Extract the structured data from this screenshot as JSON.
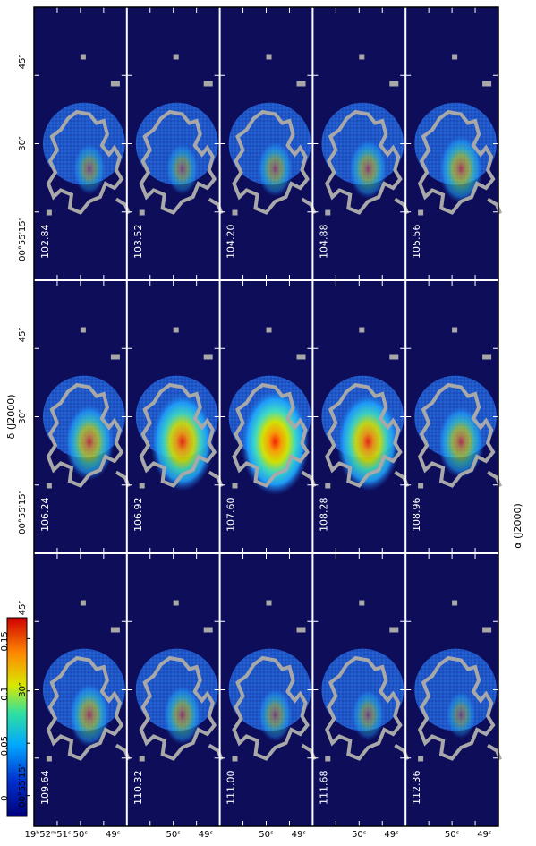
{
  "chart_data": {
    "type": "heatmap",
    "layout": {
      "rows": 3,
      "cols": 5,
      "orientation": "rotated-90-clockwise"
    },
    "panels": [
      {
        "velocity": "102.84"
      },
      {
        "velocity": "103.52"
      },
      {
        "velocity": "104.20"
      },
      {
        "velocity": "104.88"
      },
      {
        "velocity": "105.56"
      },
      {
        "velocity": "106.24"
      },
      {
        "velocity": "106.92"
      },
      {
        "velocity": "107.60"
      },
      {
        "velocity": "108.28"
      },
      {
        "velocity": "108.96"
      },
      {
        "velocity": "109.64"
      },
      {
        "velocity": "110.32"
      },
      {
        "velocity": "111.00"
      },
      {
        "velocity": "111.68"
      },
      {
        "velocity": "112.36"
      }
    ],
    "panel_peak": [
      0.03,
      0.03,
      0.04,
      0.05,
      0.07,
      0.09,
      0.14,
      0.16,
      0.14,
      0.08,
      0.06,
      0.05,
      0.035,
      0.03,
      0.02
    ],
    "xlabel": "α (J2000)",
    "ylabel": "δ (J2000)",
    "xticks": [
      "19ʰ52ᵐ51ˢ",
      "50ˢ",
      "49ˢ"
    ],
    "xticks_repeat": [
      "50ˢ",
      "49ˢ"
    ],
    "yticks": [
      "45″",
      "30″",
      "00°55′15″"
    ],
    "colorbar": {
      "ticks": [
        "0",
        "0.05",
        "0.1",
        "0.15"
      ],
      "tick_values": [
        0,
        0.05,
        0.1,
        0.15
      ],
      "range": [
        -0.02,
        0.17
      ]
    },
    "colors": {
      "background": "#0d0d5a",
      "disc": "#1f56c8",
      "contour": "#a8a8a8",
      "grid": "#ffffff"
    }
  }
}
